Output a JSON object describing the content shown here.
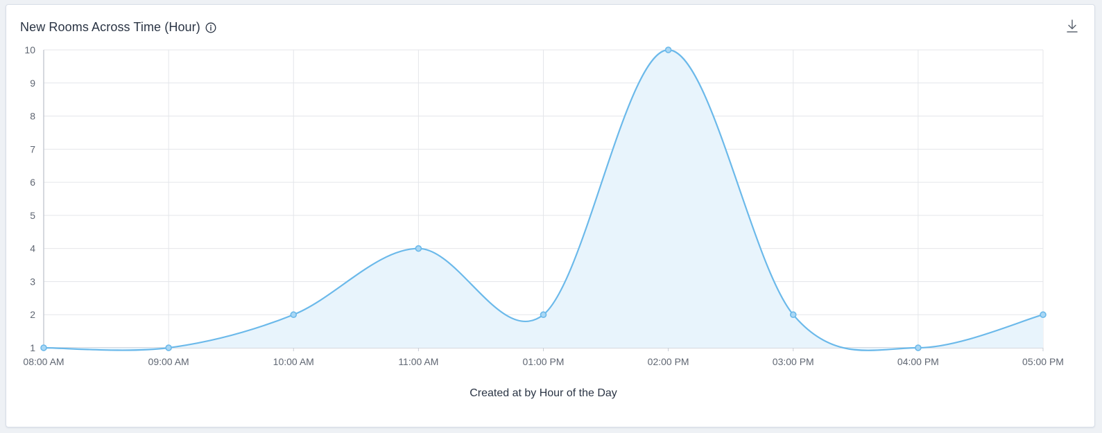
{
  "card": {
    "title": "New Rooms Across Time (Hour)",
    "info_icon": "info-icon",
    "download_icon": "download-icon"
  },
  "chart_data": {
    "type": "area",
    "title": "New Rooms Across Time (Hour)",
    "xlabel": "Created at by Hour of the Day",
    "ylabel": "",
    "categories": [
      "08:00 AM",
      "09:00 AM",
      "10:00 AM",
      "11:00 AM",
      "01:00 PM",
      "02:00 PM",
      "03:00 PM",
      "04:00 PM",
      "05:00 PM"
    ],
    "values": [
      1,
      1,
      2,
      4,
      2,
      10,
      2,
      1,
      2
    ],
    "ylim": [
      1,
      10
    ],
    "yticks": [
      1,
      2,
      3,
      4,
      5,
      6,
      7,
      8,
      9,
      10
    ],
    "grid": true,
    "smooth": true,
    "colors": {
      "line": "#6bb9ea",
      "fill": "#e8f4fc",
      "point_fill": "#a9d7f5",
      "grid": "#e4e6ea",
      "axis": "#c7ccd4"
    }
  }
}
